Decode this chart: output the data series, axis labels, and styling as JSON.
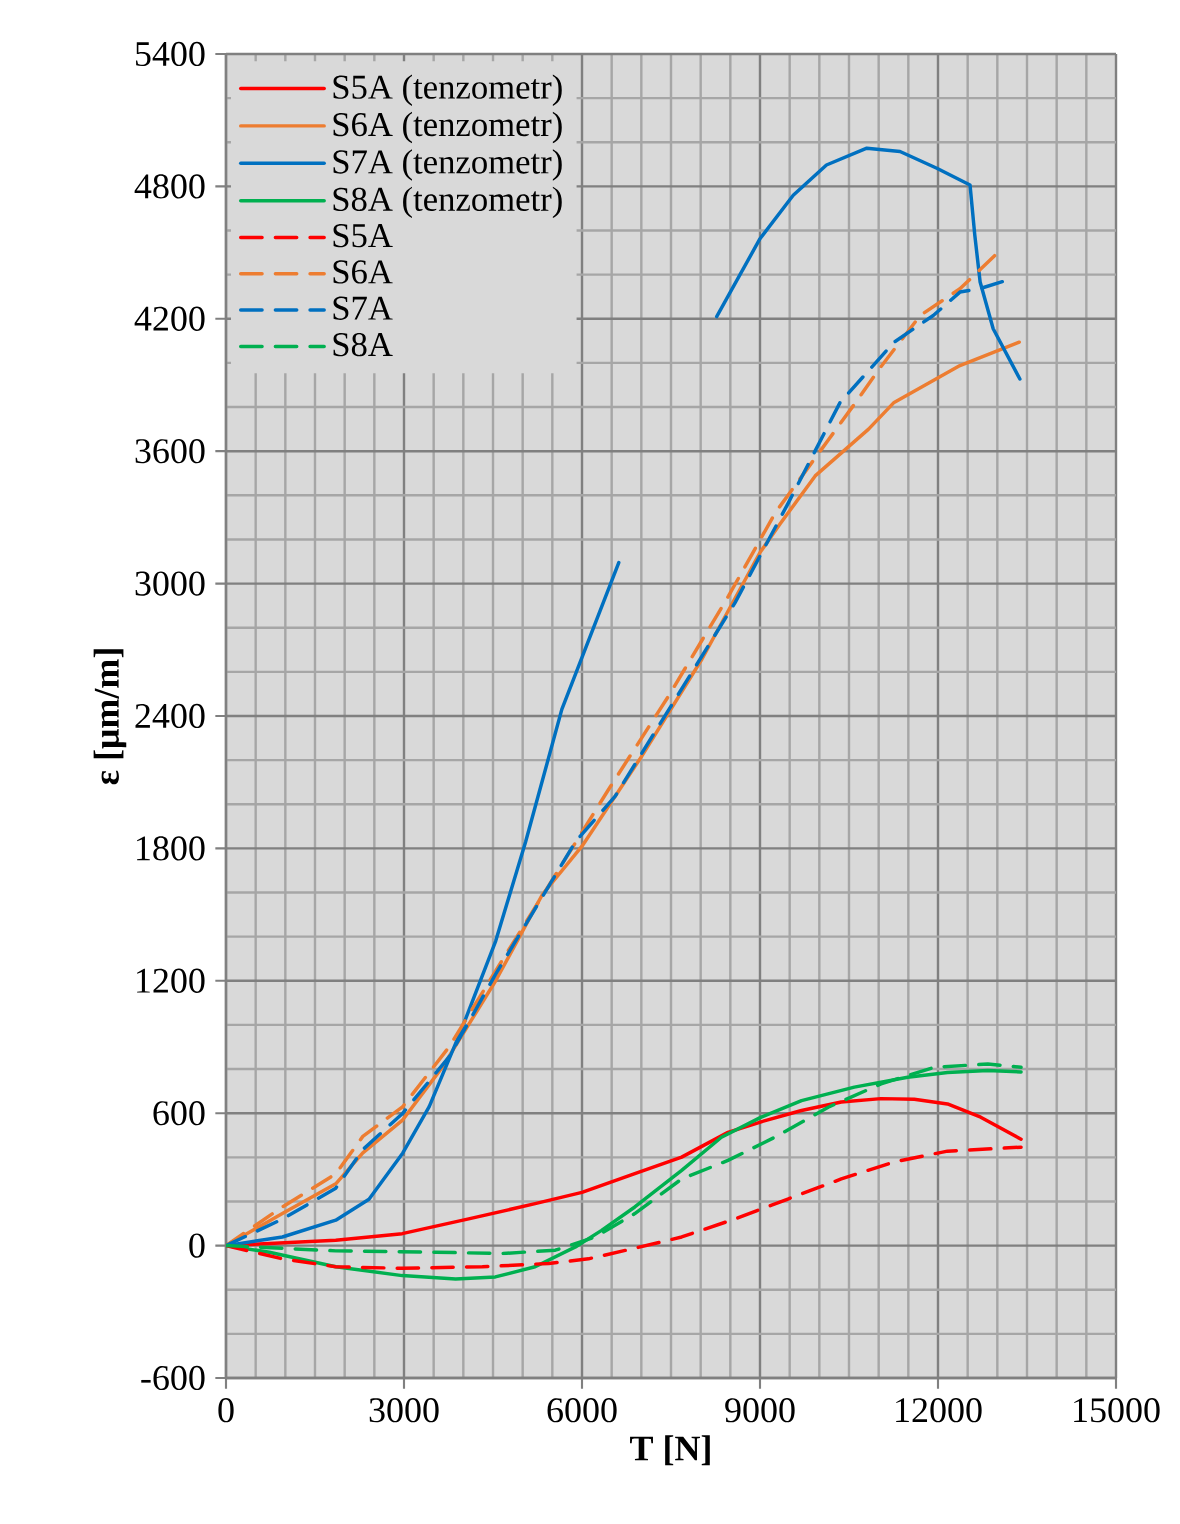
{
  "chart_data": {
    "type": "line",
    "xlabel": "T [N]",
    "ylabel": "ε  [μm/m]",
    "xlim": [
      0,
      15000
    ],
    "xticks": [
      0,
      3000,
      6000,
      9000,
      12000,
      15000
    ],
    "ylim": [
      -600,
      5400
    ],
    "yticks": [
      -600,
      0,
      600,
      1200,
      1800,
      2400,
      3000,
      3600,
      4200,
      4800,
      5400
    ],
    "grid": true,
    "legend": "top left",
    "marker": "none",
    "series": [
      {
        "name": "S5A (tenzometr)",
        "color": "#ff0000",
        "line_style": "solid",
        "x": [
          0,
          1850,
          2970,
          4090,
          5210,
          6000,
          6890,
          7680,
          8460,
          9020,
          9700,
          10370,
          11040,
          11600,
          12160,
          12720,
          13400
        ],
        "values": [
          0,
          24,
          54,
          121,
          190,
          241,
          326,
          401,
          513,
          561,
          612,
          651,
          666,
          663,
          642,
          582,
          482
        ]
      },
      {
        "name": "S6A (tenzometr)",
        "color": "#ed7d31",
        "line_style": "solid",
        "x": [
          0,
          950,
          1850,
          2306,
          2980,
          3650,
          4545,
          5330,
          6000,
          7010,
          8020,
          9000,
          9340,
          9930,
          10830,
          11260,
          12370,
          13370
        ],
        "values": [
          0,
          145,
          280,
          420,
          570,
          810,
          1200,
          1590,
          1810,
          2219,
          2657,
          3141,
          3271,
          3488,
          3700,
          3821,
          3988,
          4094
        ]
      },
      {
        "name": "S7A (tenzometr)",
        "color": "#0070c0",
        "line_style": "solid",
        "x": [
          0,
          950,
          1850,
          2410,
          2980,
          3425,
          3985,
          4545,
          5050,
          5660,
          6620,
          7500,
          8270,
          9000,
          9560,
          10120,
          10800,
          11360,
          11980,
          12540,
          12620,
          12710,
          12930,
          13380
        ],
        "values": [
          0,
          39,
          115,
          210,
          420,
          630,
          990,
          1380,
          1830,
          2430,
          3095,
          null,
          4210,
          4563,
          4760,
          4897,
          4973,
          4958,
          4882,
          4806,
          4579,
          4367,
          4155,
          3927
        ]
      },
      {
        "name": "S8A (tenzometr)",
        "color": "#00b050",
        "line_style": "solid",
        "x": [
          0,
          730,
          1850,
          2970,
          3870,
          4540,
          5210,
          5890,
          6330,
          6890,
          7680,
          8350,
          9020,
          9700,
          10590,
          11490,
          12160,
          12840,
          13400
        ],
        "values": [
          0,
          -30,
          -96,
          -136,
          -151,
          -142,
          -96,
          -6,
          69,
          175,
          341,
          491,
          582,
          657,
          718,
          763,
          784,
          793,
          787
        ]
      },
      {
        "name": "S5A",
        "color": "#ff0000",
        "line_style": "dashed",
        "x": [
          0,
          950,
          1850,
          2970,
          4320,
          5440,
          6110,
          6890,
          7680,
          8580,
          9470,
          10370,
          11270,
          12160,
          13400
        ],
        "values": [
          0,
          -60,
          -96,
          -103,
          -96,
          -81,
          -60,
          -12,
          39,
          121,
          211,
          302,
          380,
          428,
          446
        ]
      },
      {
        "name": "S6A",
        "color": "#ed7d31",
        "line_style": "dashed",
        "x": [
          0,
          950,
          1850,
          2306,
          2980,
          3760,
          4545,
          5610,
          6450,
          7460,
          8470,
          9260,
          10160,
          10610,
          11030,
          11700,
          12370,
          13020
        ],
        "values": [
          0,
          175,
          325,
          495,
          630,
          900,
          1245,
          1705,
          2068,
          2491,
          2944,
          3322,
          3654,
          3820,
          3980,
          4215,
          4336,
          4503
        ]
      },
      {
        "name": "S7A",
        "color": "#0070c0",
        "line_style": "dashed",
        "x": [
          0,
          950,
          1850,
          2306,
          2980,
          3760,
          4545,
          5890,
          6560,
          7570,
          8580,
          9480,
          10350,
          11260,
          11920,
          12370,
          12700,
          13140
        ],
        "values": [
          0,
          120,
          260,
          435,
          600,
          855,
          1230,
          1830,
          2037,
          2475,
          2914,
          3367,
          3821,
          4094,
          4215,
          4321,
          4336,
          4373
        ]
      },
      {
        "name": "S8A",
        "color": "#00b050",
        "line_style": "dashed",
        "x": [
          0,
          1850,
          3530,
          4650,
          5550,
          6220,
          6890,
          7680,
          8460,
          9250,
          10150,
          11040,
          11940,
          12840,
          13400
        ],
        "values": [
          0,
          -24,
          -30,
          -36,
          -21,
          39,
          145,
          302,
          386,
          491,
          627,
          733,
          808,
          823,
          808
        ]
      }
    ]
  }
}
